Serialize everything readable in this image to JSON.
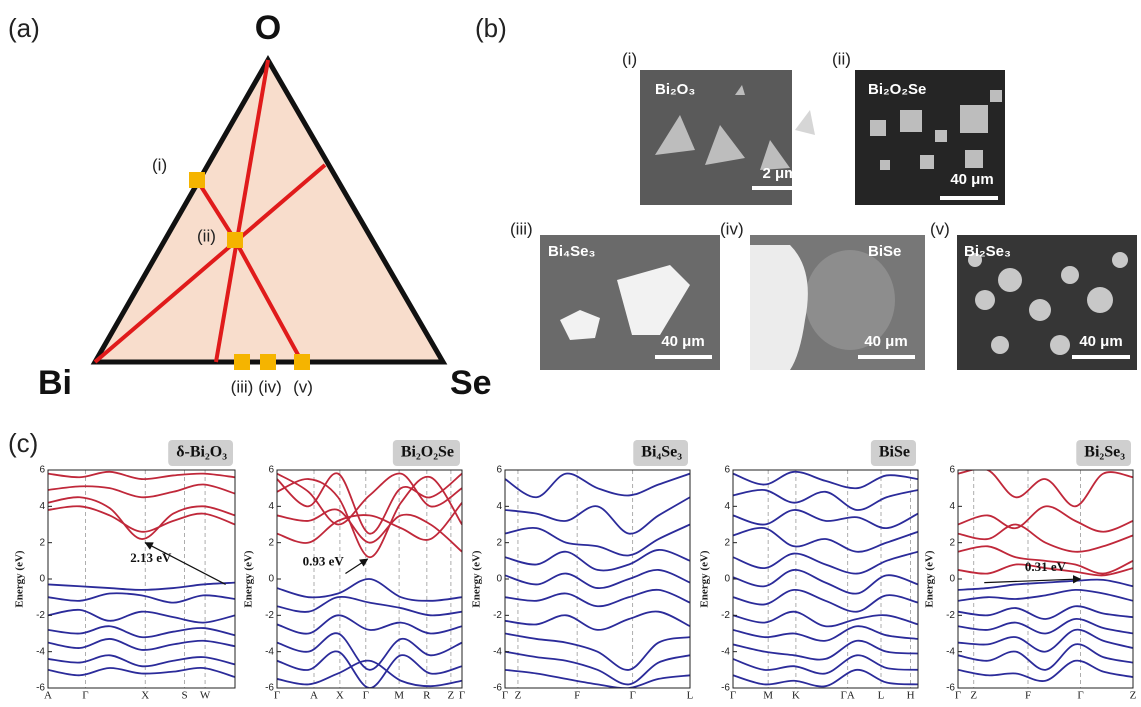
{
  "panel_a": {
    "label": "(a)",
    "vertices": [
      "O",
      "Bi",
      "Se"
    ],
    "points": [
      "(i)",
      "(ii)",
      "(iii)",
      "(iv)",
      "(v)"
    ]
  },
  "panel_b": {
    "label": "(b)",
    "images": [
      {
        "label": "(i)",
        "material": "Bi₂O₃",
        "scale": "2 μm"
      },
      {
        "label": "(ii)",
        "material": "Bi₂O₂Se",
        "scale": "40 μm"
      },
      {
        "label": "(iii)",
        "material": "Bi₄Se₃",
        "scale": "40 μm"
      },
      {
        "label": "(iv)",
        "material": "BiSe",
        "scale": "40 μm"
      },
      {
        "label": "(v)",
        "material": "Bi₂Se₃",
        "scale": "40 μm"
      }
    ]
  },
  "panel_c": {
    "label": "(c)"
  },
  "chart_data": [
    {
      "type": "line",
      "title": "δ-Bi₂O₃",
      "ylabel": "Energy (eV)",
      "annotation": "2.13 eV",
      "xlim": [
        0,
        1
      ],
      "ylim": [
        -6,
        6
      ],
      "yticks": [
        -6,
        -4,
        -2,
        0,
        2,
        4,
        6
      ],
      "xgrid": true,
      "xticks": [
        {
          "value": 0,
          "label": "A"
        },
        {
          "value": 0.2,
          "label": "Γ"
        },
        {
          "value": 0.52,
          "label": "X"
        },
        {
          "value": 0.73,
          "label": "S"
        },
        {
          "value": 0.84,
          "label": "W"
        }
      ],
      "x": [
        0,
        0.17,
        0.33,
        0.5,
        0.67,
        0.83,
        1
      ],
      "series": [
        {
          "color": "#c0283a",
          "values": [
            5.8,
            5.6,
            5.9,
            5.5,
            5.7,
            5.8,
            5.6
          ]
        },
        {
          "color": "#c0283a",
          "values": [
            4.9,
            5.1,
            5.0,
            4.5,
            4.8,
            5.2,
            4.7
          ]
        },
        {
          "color": "#c0283a",
          "values": [
            4.2,
            4.5,
            3.9,
            2.2,
            3.6,
            4.0,
            3.5
          ]
        },
        {
          "color": "#c0283a",
          "values": [
            3.8,
            4.0,
            3.5,
            2.6,
            3.2,
            3.6,
            3.0
          ]
        },
        {
          "color": "#2b2b9a",
          "values": [
            -0.3,
            -0.4,
            -0.5,
            -0.6,
            -0.5,
            -0.3,
            -0.2
          ]
        },
        {
          "color": "#2b2b9a",
          "values": [
            -1.0,
            -1.2,
            -0.8,
            -0.9,
            -1.3,
            -0.9,
            -1.1
          ]
        },
        {
          "color": "#2b2b9a",
          "values": [
            -2.0,
            -1.7,
            -2.3,
            -1.8,
            -2.1,
            -2.4,
            -2.0
          ]
        },
        {
          "color": "#2b2b9a",
          "values": [
            -2.8,
            -3.0,
            -2.6,
            -3.2,
            -2.9,
            -2.7,
            -3.1
          ]
        },
        {
          "color": "#2b2b9a",
          "values": [
            -3.5,
            -3.8,
            -3.3,
            -3.9,
            -3.6,
            -3.4,
            -3.7
          ]
        },
        {
          "color": "#2b2b9a",
          "values": [
            -4.4,
            -4.6,
            -4.2,
            -4.8,
            -4.5,
            -4.3,
            -4.7
          ]
        },
        {
          "color": "#2b2b9a",
          "values": [
            -5.0,
            -5.3,
            -4.9,
            -5.2,
            -5.1,
            -4.9,
            -5.4
          ]
        }
      ]
    },
    {
      "type": "line",
      "title": "Bi₂O₂Se",
      "ylabel": "Energy (eV)",
      "annotation": "0.93 eV",
      "xlim": [
        0,
        1
      ],
      "ylim": [
        -6,
        6
      ],
      "yticks": [
        -6,
        -4,
        -2,
        0,
        2,
        4,
        6
      ],
      "xgrid": true,
      "xticks": [
        {
          "value": 0,
          "label": "Γ"
        },
        {
          "value": 0.2,
          "label": "A"
        },
        {
          "value": 0.34,
          "label": "X"
        },
        {
          "value": 0.48,
          "label": "Γ"
        },
        {
          "value": 0.66,
          "label": "M"
        },
        {
          "value": 0.81,
          "label": "R"
        },
        {
          "value": 0.94,
          "label": "Z"
        },
        {
          "value": 1,
          "label": "Γ"
        }
      ],
      "x": [
        0,
        0.17,
        0.33,
        0.5,
        0.67,
        0.83,
        1
      ],
      "series": [
        {
          "color": "#c0283a",
          "values": [
            5.5,
            4.0,
            5.8,
            2.5,
            5.0,
            4.5,
            5.8
          ]
        },
        {
          "color": "#c0283a",
          "values": [
            4.8,
            5.5,
            4.5,
            1.2,
            4.2,
            5.6,
            3.0
          ]
        },
        {
          "color": "#c0283a",
          "values": [
            3.5,
            3.2,
            3.8,
            2.0,
            3.5,
            3.0,
            1.5
          ]
        },
        {
          "color": "#c0283a",
          "values": [
            2.5,
            2.0,
            3.2,
            3.5,
            2.8,
            2.2,
            4.2
          ]
        },
        {
          "color": "#c0283a",
          "values": [
            5.8,
            4.8,
            3.0,
            4.6,
            5.8,
            4.0,
            5.0
          ]
        },
        {
          "color": "#2b2b9a",
          "values": [
            -0.5,
            -1.0,
            -0.8,
            0.0,
            -1.0,
            -1.2,
            -1.0
          ]
        },
        {
          "color": "#2b2b9a",
          "values": [
            -1.5,
            -1.8,
            -1.0,
            -1.3,
            -1.6,
            -2.0,
            -1.8
          ]
        },
        {
          "color": "#2b2b9a",
          "values": [
            -2.5,
            -3.0,
            -2.0,
            -2.8,
            -2.4,
            -3.0,
            -2.6
          ]
        },
        {
          "color": "#2b2b9a",
          "values": [
            -3.5,
            -4.0,
            -3.0,
            -5.0,
            -3.3,
            -4.2,
            -3.5
          ]
        },
        {
          "color": "#2b2b9a",
          "values": [
            -4.5,
            -5.0,
            -4.0,
            -6.0,
            -4.2,
            -5.2,
            -4.8
          ]
        },
        {
          "color": "#2b2b9a",
          "values": [
            -5.5,
            -5.8,
            -5.2,
            -4.5,
            -5.6,
            -5.9,
            -5.6
          ]
        }
      ]
    },
    {
      "type": "line",
      "title": "Bi₄Se₃",
      "ylabel": "Energy (eV)",
      "xlim": [
        0,
        1
      ],
      "ylim": [
        -6,
        6
      ],
      "yticks": [
        -6,
        -4,
        -2,
        0,
        2,
        4,
        6
      ],
      "xgrid": true,
      "xticks": [
        {
          "value": 0,
          "label": "Γ"
        },
        {
          "value": 0.07,
          "label": "Z"
        },
        {
          "value": 0.39,
          "label": "F"
        },
        {
          "value": 0.69,
          "label": "Γ"
        },
        {
          "value": 1,
          "label": "L"
        }
      ],
      "x": [
        0,
        0.17,
        0.33,
        0.5,
        0.67,
        0.83,
        1
      ],
      "series": [
        {
          "color": "#2b2b9a",
          "values": [
            5.5,
            4.5,
            5.8,
            5.0,
            4.6,
            5.2,
            5.8
          ]
        },
        {
          "color": "#2b2b9a",
          "values": [
            3.8,
            3.6,
            3.2,
            4.0,
            2.5,
            3.5,
            4.5
          ]
        },
        {
          "color": "#2b2b9a",
          "values": [
            2.5,
            2.8,
            2.0,
            1.8,
            1.3,
            2.2,
            3.0
          ]
        },
        {
          "color": "#2b2b9a",
          "values": [
            1.2,
            0.8,
            1.5,
            0.5,
            0.8,
            1.6,
            1.0
          ]
        },
        {
          "color": "#2b2b9a",
          "values": [
            0.2,
            -0.3,
            0.3,
            -0.5,
            0.0,
            0.5,
            -0.2
          ]
        },
        {
          "color": "#2b2b9a",
          "values": [
            -1.0,
            -1.2,
            -0.8,
            -1.5,
            -1.0,
            -0.6,
            -1.3
          ]
        },
        {
          "color": "#2b2b9a",
          "values": [
            -2.3,
            -2.5,
            -2.0,
            -2.8,
            -2.2,
            -1.8,
            -2.6
          ]
        },
        {
          "color": "#2b2b9a",
          "values": [
            -3.0,
            -3.3,
            -3.5,
            -4.0,
            -5.0,
            -3.5,
            -3.2
          ]
        },
        {
          "color": "#2b2b9a",
          "values": [
            -4.0,
            -4.3,
            -4.5,
            -5.0,
            -5.8,
            -4.6,
            -4.2
          ]
        },
        {
          "color": "#2b2b9a",
          "values": [
            -5.0,
            -5.2,
            -5.5,
            -5.8,
            -6.0,
            -5.5,
            -5.3
          ]
        }
      ]
    },
    {
      "type": "line",
      "title": "BiSe",
      "ylabel": "Energy (eV)",
      "xlim": [
        0,
        1
      ],
      "ylim": [
        -6,
        6
      ],
      "yticks": [
        -6,
        -4,
        -2,
        0,
        2,
        4,
        6
      ],
      "xgrid": true,
      "xticks": [
        {
          "value": 0,
          "label": "Γ"
        },
        {
          "value": 0.19,
          "label": "M"
        },
        {
          "value": 0.34,
          "label": "K"
        },
        {
          "value": 0.62,
          "label": "ΓA"
        },
        {
          "value": 0.8,
          "label": "L"
        },
        {
          "value": 0.96,
          "label": "H"
        }
      ],
      "x": [
        0,
        0.17,
        0.33,
        0.5,
        0.67,
        0.83,
        1
      ],
      "series": [
        {
          "color": "#2b2b9a",
          "values": [
            5.8,
            5.2,
            5.9,
            5.4,
            5.0,
            5.7,
            5.5
          ]
        },
        {
          "color": "#2b2b9a",
          "values": [
            4.6,
            4.9,
            4.2,
            4.8,
            3.8,
            4.5,
            4.9
          ]
        },
        {
          "color": "#2b2b9a",
          "values": [
            3.5,
            3.0,
            3.8,
            3.2,
            3.4,
            2.8,
            3.6
          ]
        },
        {
          "color": "#2b2b9a",
          "values": [
            2.4,
            2.8,
            1.8,
            2.2,
            1.5,
            2.0,
            2.6
          ]
        },
        {
          "color": "#2b2b9a",
          "values": [
            1.2,
            0.6,
            1.4,
            0.8,
            0.3,
            1.0,
            1.5
          ]
        },
        {
          "color": "#2b2b9a",
          "values": [
            0.1,
            -0.4,
            0.5,
            -0.2,
            -0.8,
            0.2,
            -0.3
          ]
        },
        {
          "color": "#2b2b9a",
          "values": [
            -1.0,
            -1.4,
            -0.6,
            -1.2,
            -1.8,
            -0.9,
            -1.3
          ]
        },
        {
          "color": "#2b2b9a",
          "values": [
            -2.0,
            -2.4,
            -1.8,
            -2.6,
            -2.2,
            -2.0,
            -2.5
          ]
        },
        {
          "color": "#2b2b9a",
          "values": [
            -2.8,
            -3.2,
            -3.0,
            -3.4,
            -2.6,
            -3.1,
            -3.3
          ]
        },
        {
          "color": "#2b2b9a",
          "values": [
            -3.6,
            -4.0,
            -4.2,
            -4.4,
            -3.4,
            -4.0,
            -4.1
          ]
        },
        {
          "color": "#2b2b9a",
          "values": [
            -4.4,
            -5.0,
            -4.8,
            -5.2,
            -4.2,
            -4.9,
            -5.0
          ]
        },
        {
          "color": "#2b2b9a",
          "values": [
            -5.3,
            -5.8,
            -5.6,
            -5.9,
            -5.0,
            -5.7,
            -5.8
          ]
        }
      ]
    },
    {
      "type": "line",
      "title": "Bi₂Se₃",
      "ylabel": "Energy (eV)",
      "annotation": "0.31 eV",
      "xlim": [
        0,
        1
      ],
      "ylim": [
        -6,
        6
      ],
      "yticks": [
        -6,
        -4,
        -2,
        0,
        2,
        4,
        6
      ],
      "xgrid": true,
      "xticks": [
        {
          "value": 0,
          "label": "Γ"
        },
        {
          "value": 0.09,
          "label": "Z"
        },
        {
          "value": 0.4,
          "label": "F"
        },
        {
          "value": 0.7,
          "label": "Γ"
        },
        {
          "value": 1,
          "label": "Z"
        }
      ],
      "x": [
        0,
        0.17,
        0.33,
        0.5,
        0.67,
        0.83,
        1
      ],
      "series": [
        {
          "color": "#c0283a",
          "values": [
            5.8,
            6.0,
            4.5,
            5.5,
            4.0,
            5.8,
            5.6
          ]
        },
        {
          "color": "#c0283a",
          "values": [
            3.0,
            3.5,
            2.8,
            4.0,
            3.2,
            2.6,
            3.2
          ]
        },
        {
          "color": "#c0283a",
          "values": [
            2.5,
            2.2,
            3.0,
            2.0,
            1.5,
            1.8,
            2.4
          ]
        },
        {
          "color": "#c0283a",
          "values": [
            1.5,
            1.8,
            1.2,
            1.0,
            0.8,
            0.3,
            1.0
          ]
        },
        {
          "color": "#c0283a",
          "values": [
            0.5,
            0.3,
            0.8,
            0.6,
            0.4,
            0.2,
            0.6
          ]
        },
        {
          "color": "#2b2b9a",
          "values": [
            -0.6,
            -0.5,
            -0.3,
            -0.2,
            -0.1,
            -0.05,
            -0.4
          ]
        },
        {
          "color": "#2b2b9a",
          "values": [
            -1.2,
            -1.0,
            -1.1,
            -0.9,
            -0.6,
            -0.8,
            -1.2
          ]
        },
        {
          "color": "#2b2b9a",
          "values": [
            -1.8,
            -2.0,
            -1.6,
            -2.2,
            -1.5,
            -1.9,
            -2.1
          ]
        },
        {
          "color": "#2b2b9a",
          "values": [
            -2.6,
            -2.8,
            -2.4,
            -3.0,
            -2.2,
            -2.7,
            -3.0
          ]
        },
        {
          "color": "#2b2b9a",
          "values": [
            -3.5,
            -3.6,
            -3.2,
            -4.0,
            -2.8,
            -3.4,
            -3.8
          ]
        },
        {
          "color": "#2b2b9a",
          "values": [
            -4.2,
            -4.5,
            -4.0,
            -5.0,
            -3.6,
            -4.3,
            -4.6
          ]
        },
        {
          "color": "#2b2b9a",
          "values": [
            -5.0,
            -5.3,
            -5.2,
            -5.6,
            -4.5,
            -5.1,
            -5.4
          ]
        }
      ]
    }
  ]
}
